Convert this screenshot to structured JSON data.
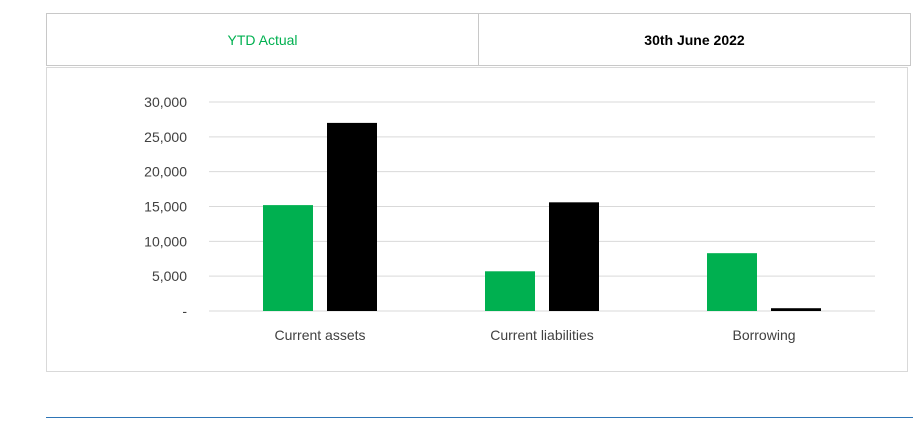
{
  "header": {
    "series_a_label": "YTD Actual",
    "series_b_label": "30th June 2022"
  },
  "colors": {
    "series_a": "#00b050",
    "series_b": "#000000",
    "grid": "#d9d9d9",
    "text": "#404040"
  },
  "chart_data": {
    "type": "bar",
    "categories": [
      "Current assets",
      "Current liabilities",
      "Borrowing"
    ],
    "series": [
      {
        "name": "YTD Actual",
        "values": [
          15200,
          5700,
          8300
        ]
      },
      {
        "name": "30th June 2022",
        "values": [
          27000,
          15600,
          400
        ]
      }
    ],
    "y_ticks": [
      0,
      5000,
      10000,
      15000,
      20000,
      25000,
      30000
    ],
    "y_tick_labels": [
      "-",
      "5,000",
      "10,000",
      "15,000",
      "20,000",
      "25,000",
      "30,000"
    ],
    "ylim": [
      0,
      30000
    ],
    "grid": true,
    "legend": "top"
  }
}
